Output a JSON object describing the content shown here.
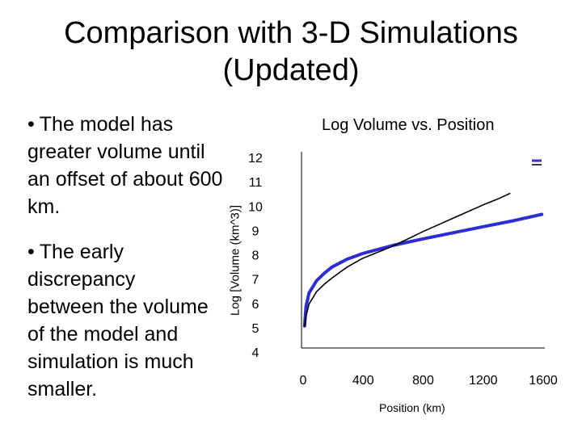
{
  "slide": {
    "title_line1": "Comparison with 3-D Simulations",
    "title_line2": "(Updated)",
    "bullets": [
      "The model has greater volume until an offset of about 600 km.",
      "The early discrepancy between the volume of the model and simulation is much smaller."
    ],
    "bullet_glyph": "•"
  },
  "chart_data": {
    "type": "line",
    "title": "Log Volume vs. Position",
    "xlabel": "Position (km)",
    "ylabel": "Log [Volume (km^3)]",
    "xlim": [
      0,
      1600
    ],
    "ylim": [
      4,
      12
    ],
    "x_ticks": [
      "0",
      "400",
      "800",
      "1200",
      "1600"
    ],
    "y_ticks": [
      "12",
      "11",
      "10",
      "9",
      "8",
      "7",
      "6",
      "5",
      "4"
    ],
    "grid": false,
    "legend": "top-right",
    "series": [
      {
        "color": "#2d2dd6",
        "points": [
          [
            20,
            4.9
          ],
          [
            30,
            5.7
          ],
          [
            50,
            6.25
          ],
          [
            100,
            6.75
          ],
          [
            150,
            7.05
          ],
          [
            200,
            7.3
          ],
          [
            300,
            7.62
          ],
          [
            400,
            7.85
          ],
          [
            600,
            8.18
          ],
          [
            800,
            8.45
          ],
          [
            1000,
            8.7
          ],
          [
            1200,
            8.95
          ],
          [
            1400,
            9.2
          ],
          [
            1580,
            9.45
          ]
        ]
      },
      {
        "color": "#000000",
        "points": [
          [
            20,
            4.9
          ],
          [
            30,
            5.3
          ],
          [
            50,
            5.8
          ],
          [
            100,
            6.3
          ],
          [
            150,
            6.6
          ],
          [
            200,
            6.85
          ],
          [
            300,
            7.3
          ],
          [
            400,
            7.65
          ],
          [
            600,
            8.15
          ],
          [
            800,
            8.75
          ],
          [
            1000,
            9.3
          ],
          [
            1200,
            9.85
          ],
          [
            1300,
            10.1
          ],
          [
            1370,
            10.3
          ]
        ]
      }
    ]
  }
}
